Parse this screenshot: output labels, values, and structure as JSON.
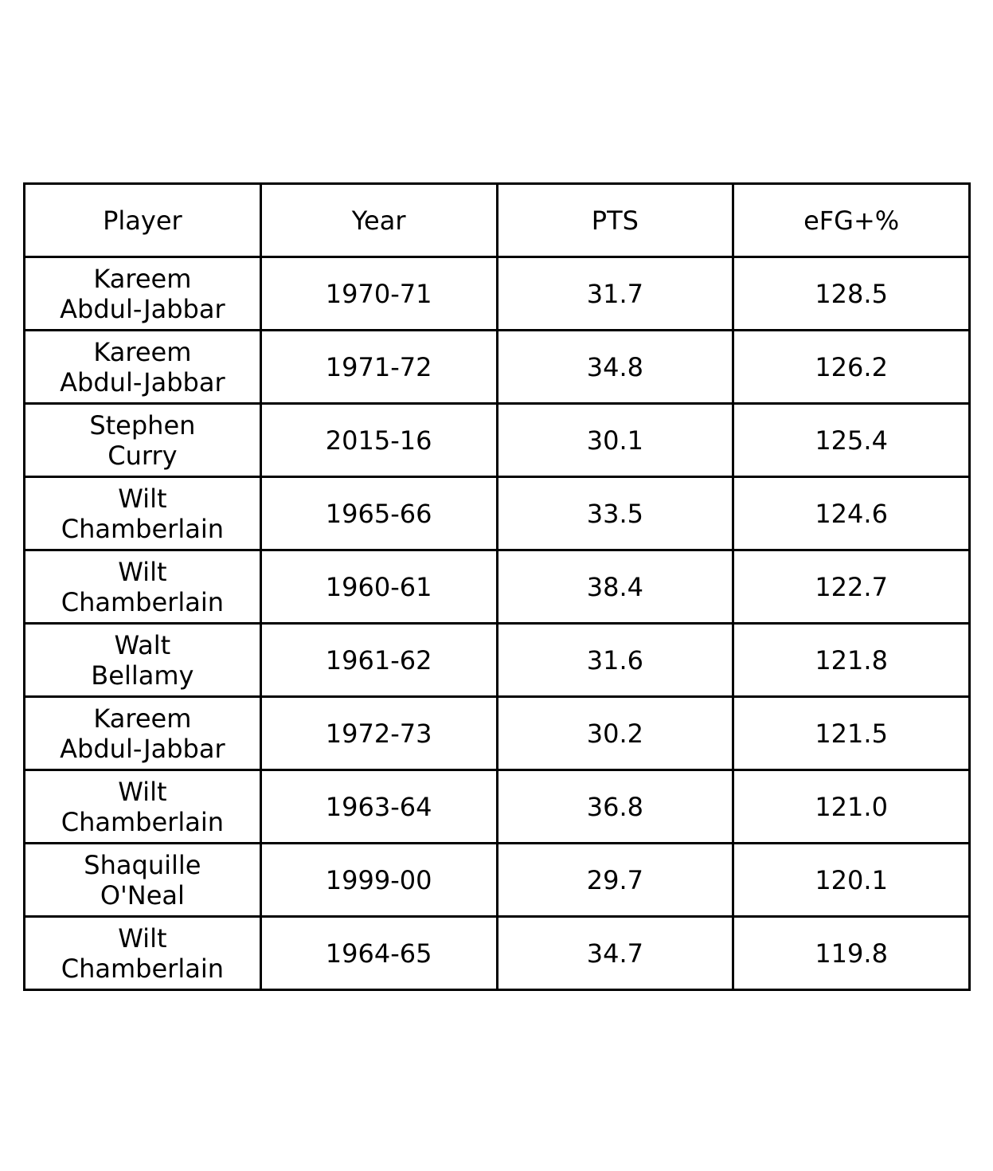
{
  "chart_data": {
    "type": "table",
    "columns": [
      "Player",
      "Year",
      "PTS",
      "eFG+%"
    ],
    "rows": [
      {
        "player": "Kareem\nAbdul-Jabbar",
        "year": "1970-71",
        "pts": "31.7",
        "efg": "128.5"
      },
      {
        "player": "Kareem\nAbdul-Jabbar",
        "year": "1971-72",
        "pts": "34.8",
        "efg": "126.2"
      },
      {
        "player": "Stephen\nCurry",
        "year": "2015-16",
        "pts": "30.1",
        "efg": "125.4"
      },
      {
        "player": "Wilt\nChamberlain",
        "year": "1965-66",
        "pts": "33.5",
        "efg": "124.6"
      },
      {
        "player": "Wilt\nChamberlain",
        "year": "1960-61",
        "pts": "38.4",
        "efg": "122.7"
      },
      {
        "player": "Walt\nBellamy",
        "year": "1961-62",
        "pts": "31.6",
        "efg": "121.8"
      },
      {
        "player": "Kareem\nAbdul-Jabbar",
        "year": "1972-73",
        "pts": "30.2",
        "efg": "121.5"
      },
      {
        "player": "Wilt\nChamberlain",
        "year": "1963-64",
        "pts": "36.8",
        "efg": "121.0"
      },
      {
        "player": "Shaquille\nO'Neal",
        "year": "1999-00",
        "pts": "29.7",
        "efg": "120.1"
      },
      {
        "player": "Wilt\nChamberlain",
        "year": "1964-65",
        "pts": "34.7",
        "efg": "119.8"
      }
    ]
  },
  "colors": {
    "border": "#000000",
    "text": "#000000",
    "background": "#ffffff"
  }
}
